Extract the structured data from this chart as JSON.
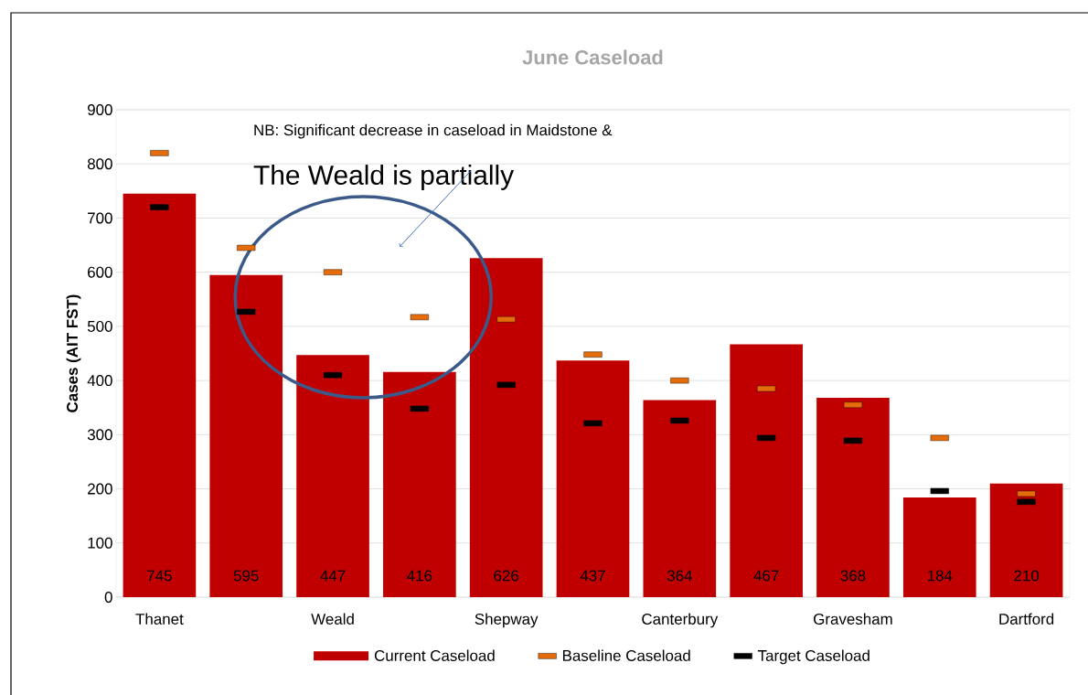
{
  "chart_data": {
    "type": "bar",
    "title": "June Caseload",
    "ylabel": "Cases (AIT FST)",
    "categories": [
      "Thanet",
      null,
      "Weald",
      null,
      "Shepway",
      null,
      "Canterbury",
      null,
      "Gravesham",
      null,
      "Dartford"
    ],
    "series": [
      {
        "name": "Current Caseload",
        "color": "#c00000",
        "data_labels": true,
        "values": [
          745,
          595,
          447,
          416,
          626,
          437,
          364,
          467,
          368,
          184,
          210
        ]
      },
      {
        "name": "Baseline Caseload",
        "type": "scatter",
        "color": "#e46c0a",
        "values": [
          820,
          645,
          600,
          517,
          513,
          448,
          400,
          385,
          355,
          294,
          191
        ]
      },
      {
        "name": "Target Caseload",
        "type": "scatter",
        "color": "#000000",
        "values": [
          720,
          527,
          410,
          348,
          392,
          321,
          326,
          294,
          289,
          196,
          176
        ]
      }
    ],
    "ylim": [
      0,
      900
    ],
    "yticks": [
      0,
      100,
      200,
      300,
      400,
      500,
      600,
      700,
      800,
      900
    ],
    "grid": "y",
    "legend": "bottom",
    "annotations": [
      "NB: Significant decrease in caseload in Maidstone &",
      "The Weald is partially"
    ]
  }
}
